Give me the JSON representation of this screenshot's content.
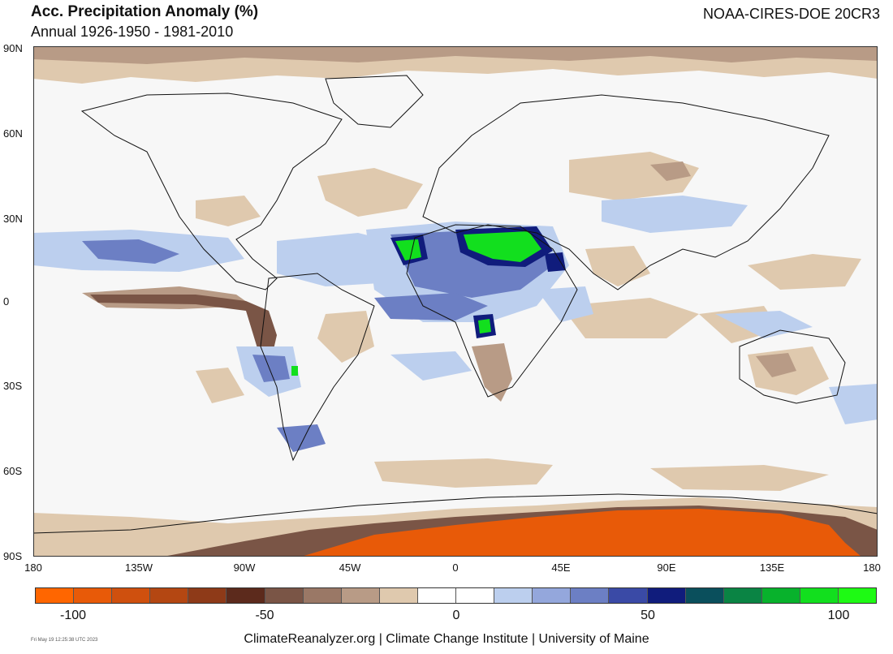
{
  "header": {
    "title": "Acc. Precipitation Anomaly (%)",
    "subtitle": "Annual 1926-1950 - 1981-2010",
    "source": "NOAA-CIRES-DOE 20CR3"
  },
  "axes": {
    "lat_labels": [
      "90N",
      "60N",
      "30N",
      "0",
      "30S",
      "60S",
      "90S"
    ],
    "lon_labels": [
      "180",
      "135W",
      "90W",
      "45W",
      "0",
      "45E",
      "90E",
      "135E",
      "180"
    ]
  },
  "colorbar": {
    "colors": [
      "#ff6600",
      "#e85a08",
      "#cf500e",
      "#b44712",
      "#8e3a18",
      "#5c2a1c",
      "#7a5546",
      "#9a7866",
      "#b89b86",
      "#dfc9ae",
      "#ffffff",
      "#ffffff",
      "#bccfee",
      "#94a7dc",
      "#6c7fc4",
      "#3a4aa6",
      "#101c7c",
      "#0a4f5c",
      "#0a8444",
      "#08b22c",
      "#12df1e",
      "#1efa14"
    ],
    "labels": [
      "-100",
      "-50",
      "0",
      "50",
      "100"
    ]
  },
  "map_colors": {
    "background": "#f7f7f7",
    "dry_light": "#dfc9ae",
    "dry_mid": "#b89b86",
    "dry_dark": "#7a5546",
    "dry_extreme": "#e85a08",
    "wet_light": "#bccfee",
    "wet_mid": "#6c7fc4",
    "wet_dark": "#101c7c",
    "wet_extreme": "#12df1e"
  },
  "footer": {
    "credits": "ClimateReanalyzer.org | Climate Change Institute | University of Maine",
    "timestamp": "Fri May 19 12:25:38 UTC 2023"
  }
}
